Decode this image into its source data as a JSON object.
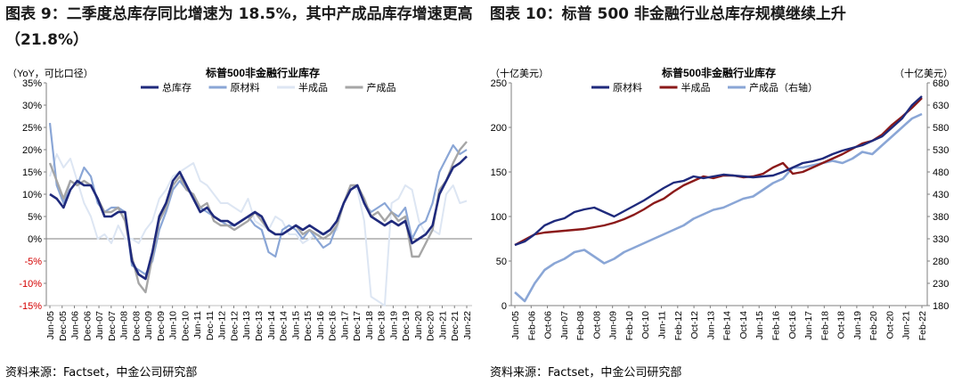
{
  "left": {
    "title": "图表 9：二季度总库存同比增速为 18.5%，其中产成品库存增速更高（21.8%）",
    "source": "资料来源：Factset，中金公司研究部"
  },
  "right": {
    "title": "图表 10：标普 500 非金融行业总库存规模继续上升",
    "source": "资料来源：Factset，中金公司研究部"
  },
  "chart_data": [
    {
      "type": "line",
      "title": "标普500非金融行业库存",
      "ylabel": "（YoY，可比口径）",
      "ylim": [
        -15,
        35
      ],
      "yticks": [
        "-15%",
        "-10%",
        "-5%",
        "0%",
        "5%",
        "10%",
        "15%",
        "20%",
        "25%",
        "30%",
        "35%"
      ],
      "x_start": "Jun-05",
      "x_end": "Jun-22",
      "xticks": [
        "Jun-05",
        "Dec-05",
        "Jun-06",
        "Dec-06",
        "Jun-07",
        "Dec-07",
        "Jun-08",
        "Dec-08",
        "Jun-09",
        "Dec-09",
        "Jun-10",
        "Dec-10",
        "Jun-11",
        "Dec-11",
        "Jun-12",
        "Dec-12",
        "Jun-13",
        "Dec-13",
        "Jun-14",
        "Dec-14",
        "Jun-15",
        "Dec-15",
        "Jun-16",
        "Dec-16",
        "Jun-17",
        "Dec-17",
        "Jun-18",
        "Dec-18",
        "Jun-19",
        "Dec-19",
        "Jun-20",
        "Dec-20",
        "Jun-21",
        "Dec-21",
        "Jun-22"
      ],
      "grid": false,
      "legend": "top",
      "colors": {
        "总库存": "#1f2a7c",
        "原材料": "#8aa6d6",
        "半成品": "#dde6f3",
        "产成品": "#a6a6a6"
      },
      "series": [
        {
          "name": "总库存",
          "values": [
            10,
            9,
            7,
            11,
            13,
            12,
            12,
            9,
            5,
            5,
            6,
            6,
            -5,
            -8,
            -9,
            -3,
            5,
            8,
            13,
            15,
            12,
            9,
            6,
            7,
            5,
            4,
            4,
            3,
            4,
            5,
            6,
            5,
            2,
            1,
            1,
            2,
            3,
            2,
            3,
            2,
            1,
            2,
            4,
            8,
            11,
            12,
            8,
            5,
            4,
            3,
            4,
            3,
            4,
            -1,
            0,
            1,
            3,
            10,
            13,
            16,
            17,
            18.5
          ]
        },
        {
          "name": "原材料",
          "values": [
            26,
            12,
            8,
            13,
            12,
            16,
            14,
            8,
            6,
            7,
            7,
            6,
            -6,
            -7,
            -8,
            -5,
            2,
            6,
            11,
            13,
            11,
            10,
            7,
            6,
            5,
            4,
            3,
            3,
            4,
            5,
            3,
            2,
            -3,
            -4,
            2,
            3,
            2,
            0,
            2,
            0,
            -2,
            -1,
            3,
            8,
            11,
            12,
            8,
            6,
            7,
            8,
            6,
            5,
            7,
            0,
            3,
            4,
            8,
            15,
            18,
            21,
            19,
            20
          ]
        },
        {
          "name": "半成品",
          "values": [
            14,
            19,
            16,
            18,
            13,
            8,
            5,
            0,
            1,
            -1,
            3,
            0,
            0,
            -1,
            2,
            4,
            9,
            11,
            14,
            15,
            16,
            17,
            13,
            12,
            10,
            8,
            8,
            7,
            6,
            9,
            4,
            3,
            2,
            5,
            4,
            1,
            1,
            -1,
            0,
            1,
            1,
            1,
            2,
            8,
            12,
            11,
            4,
            -13,
            -14,
            -15,
            8,
            9,
            12,
            11,
            4,
            1,
            2,
            1,
            10,
            12,
            8,
            8.5
          ]
        },
        {
          "name": "产成品",
          "values": [
            17,
            13,
            9,
            13,
            12,
            13,
            12,
            9,
            6,
            6,
            7,
            4,
            -4,
            -10,
            -12,
            -4,
            4,
            7,
            12,
            14,
            11,
            10,
            7,
            8,
            4,
            3,
            3,
            2,
            3,
            4,
            6,
            4,
            2,
            1,
            1,
            2,
            3,
            1,
            2,
            1,
            0,
            1,
            3,
            8,
            12,
            12,
            9,
            5,
            6,
            4,
            6,
            4,
            5,
            -4,
            -4,
            -1,
            2,
            11,
            13,
            17,
            20,
            21.8
          ]
        }
      ]
    },
    {
      "type": "line",
      "title": "标普500非金融行业库存",
      "ylabel": "（十亿美元）",
      "y2label": "（十亿美元）",
      "ylim": [
        0,
        250
      ],
      "y2lim": [
        180,
        680
      ],
      "yticks": [
        "0",
        "50",
        "100",
        "150",
        "200",
        "250"
      ],
      "y2ticks": [
        "180",
        "230",
        "280",
        "330",
        "380",
        "430",
        "480",
        "530",
        "580",
        "630",
        "680"
      ],
      "x_start": "Jun-05",
      "x_end": "Jun-22",
      "xticks": [
        "Jun-05",
        "Feb-06",
        "Oct-06",
        "Jun-07",
        "Feb-08",
        "Oct-08",
        "Jun-09",
        "Feb-10",
        "Oct-10",
        "Jun-11",
        "Feb-12",
        "Oct-12",
        "Jun-13",
        "Feb-14",
        "Oct-14",
        "Jun-15",
        "Feb-16",
        "Oct-16",
        "Jun-17",
        "Feb-18",
        "Oct-18",
        "Jun-19",
        "Feb-20",
        "Oct-20",
        "Jun-21",
        "Feb-22"
      ],
      "grid": false,
      "legend": "top",
      "colors": {
        "原材料": "#1f2a7c",
        "半成品": "#8b1a1a",
        "产成品（右轴）": "#8aa6d6"
      },
      "series": [
        {
          "name": "原材料",
          "axis": "left",
          "values": [
            68,
            72,
            80,
            90,
            95,
            98,
            105,
            108,
            110,
            105,
            100,
            106,
            112,
            118,
            125,
            132,
            138,
            140,
            145,
            143,
            145,
            147,
            146,
            145,
            144,
            145,
            146,
            150,
            155,
            160,
            162,
            165,
            170,
            174,
            177,
            180,
            185,
            190,
            200,
            210,
            225,
            235
          ]
        },
        {
          "name": "半成品",
          "axis": "left",
          "values": [
            68,
            74,
            80,
            82,
            83,
            84,
            85,
            86,
            88,
            90,
            93,
            97,
            102,
            108,
            115,
            120,
            128,
            135,
            140,
            145,
            143,
            146,
            146,
            144,
            145,
            148,
            155,
            160,
            148,
            150,
            155,
            160,
            165,
            170,
            176,
            182,
            185,
            192,
            203,
            212,
            222,
            233
          ]
        },
        {
          "name": "产成品（右轴）",
          "axis": "right",
          "values": [
            210,
            190,
            230,
            260,
            275,
            285,
            300,
            305,
            290,
            275,
            285,
            300,
            310,
            320,
            330,
            340,
            350,
            360,
            375,
            385,
            395,
            400,
            410,
            420,
            425,
            440,
            455,
            465,
            490,
            490,
            495,
            500,
            505,
            500,
            510,
            525,
            520,
            540,
            560,
            580,
            600,
            610
          ]
        }
      ]
    }
  ]
}
